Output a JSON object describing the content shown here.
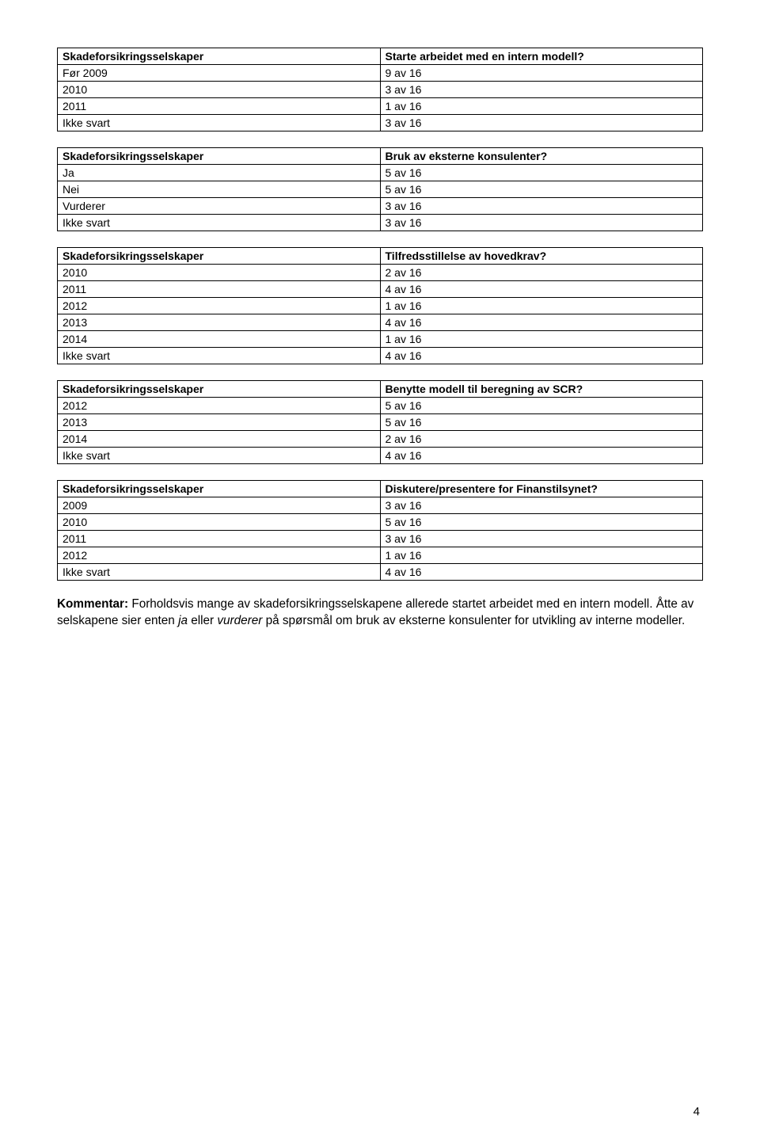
{
  "tables": [
    {
      "header": [
        "Skadeforsikringsselskaper",
        "Starte arbeidet med en intern modell?"
      ],
      "rows": [
        [
          "Før 2009",
          "9 av 16"
        ],
        [
          "2010",
          "3 av 16"
        ],
        [
          "2011",
          "1 av 16"
        ],
        [
          "Ikke svart",
          "3 av 16"
        ]
      ]
    },
    {
      "header": [
        "Skadeforsikringsselskaper",
        "Bruk av eksterne konsulenter?"
      ],
      "rows": [
        [
          "Ja",
          "5 av 16"
        ],
        [
          "Nei",
          "5 av 16"
        ],
        [
          "Vurderer",
          "3 av 16"
        ],
        [
          "Ikke svart",
          "3 av 16"
        ]
      ]
    },
    {
      "header": [
        "Skadeforsikringsselskaper",
        "Tilfredsstillelse av hovedkrav?"
      ],
      "rows": [
        [
          "2010",
          "2 av 16"
        ],
        [
          "2011",
          "4 av 16"
        ],
        [
          "2012",
          "1 av 16"
        ],
        [
          "2013",
          "4 av 16"
        ],
        [
          "2014",
          "1 av 16"
        ],
        [
          "Ikke svart",
          "4 av 16"
        ]
      ]
    },
    {
      "header": [
        "Skadeforsikringsselskaper",
        "Benytte modell til beregning av SCR?"
      ],
      "rows": [
        [
          "2012",
          "5 av 16"
        ],
        [
          "2013",
          "5 av 16"
        ],
        [
          "2014",
          "2 av 16"
        ],
        [
          "Ikke svart",
          "4 av 16"
        ]
      ]
    },
    {
      "header": [
        "Skadeforsikringsselskaper",
        "Diskutere/presentere for Finanstilsynet?"
      ],
      "rows": [
        [
          "2009",
          "3 av 16"
        ],
        [
          "2010",
          "5 av 16"
        ],
        [
          "2011",
          "3 av 16"
        ],
        [
          "2012",
          "1 av 16"
        ],
        [
          "Ikke svart",
          "4 av 16"
        ]
      ]
    }
  ],
  "kommentar": {
    "label": "Kommentar:",
    "text_parts": [
      " Forholdsvis mange av skadeforsikringsselskapene allerede startet arbeidet med en intern modell. Åtte av selskapene sier enten ",
      " eller ",
      " på spørsmål om bruk av eksterne konsulenter for utvikling av interne modeller."
    ],
    "italic": [
      "ja",
      "vurderer"
    ]
  },
  "page_number": "4"
}
